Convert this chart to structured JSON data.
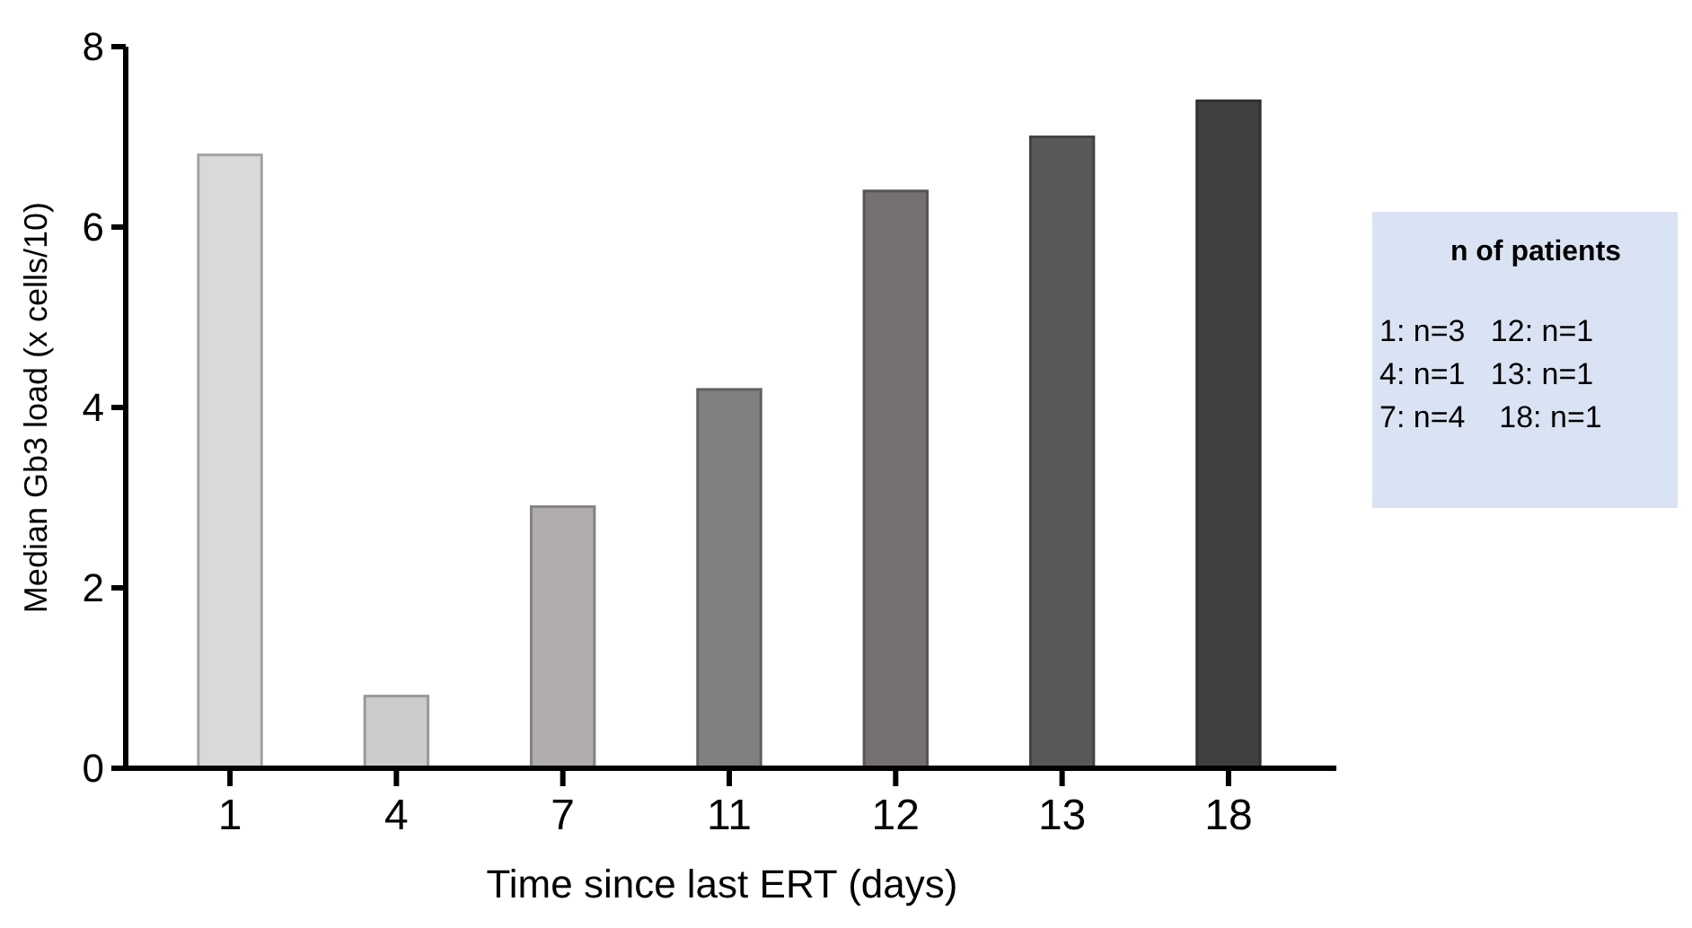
{
  "chart_data": {
    "type": "bar",
    "xlabel": "Time since last ERT (days)",
    "ylabel": "Median Gb3 load (x cells/10)",
    "categories": [
      "1",
      "4",
      "7",
      "11",
      "12",
      "13",
      "18"
    ],
    "values": [
      6.8,
      0.8,
      2.9,
      4.2,
      6.4,
      7.0,
      7.4
    ],
    "colors": [
      "#d9d9d9",
      "#cccccc",
      "#b0acac",
      "#808080",
      "#767171",
      "#595959",
      "#404040"
    ],
    "ylim": [
      0,
      8
    ],
    "yticks": [
      0,
      2,
      4,
      6,
      8
    ],
    "annotations": [
      "n of patients",
      "1: n=3   12: n=1",
      "4: n=1   13: n=1",
      "7: n=4    18: n=1"
    ]
  }
}
